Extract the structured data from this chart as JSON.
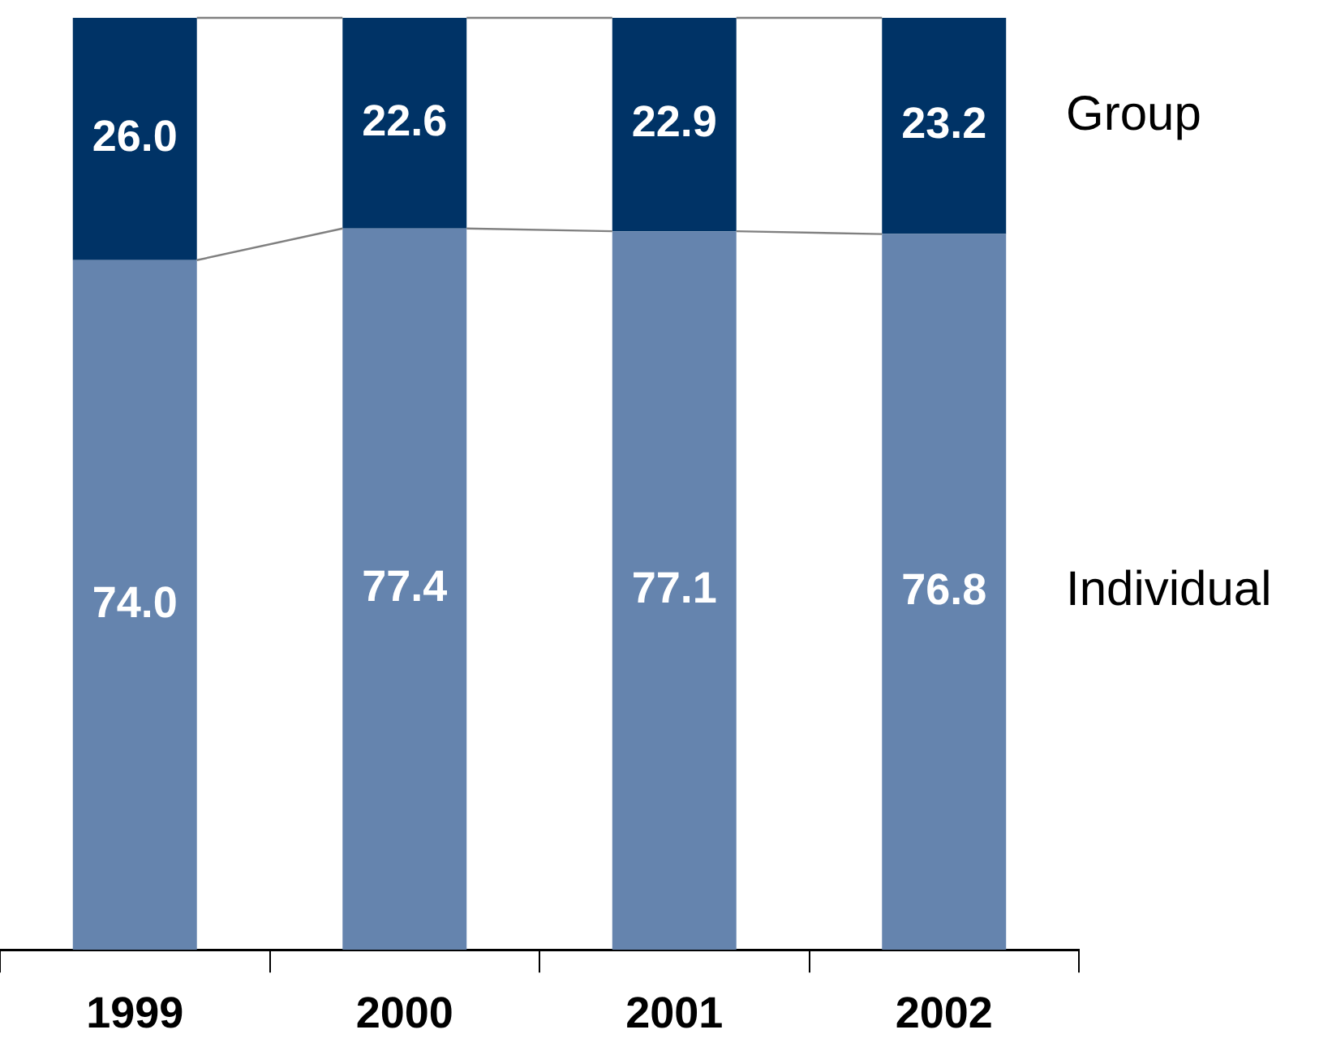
{
  "chart_data": {
    "type": "bar",
    "stacked": true,
    "categories": [
      "1999",
      "2000",
      "2001",
      "2002"
    ],
    "series": [
      {
        "name": "Individual",
        "color": "#6584ae",
        "values": [
          74.0,
          77.4,
          77.1,
          76.8
        ],
        "value_labels": [
          "74.0",
          "77.4",
          "77.1",
          "76.8"
        ]
      },
      {
        "name": "Group",
        "color": "#003366",
        "values": [
          26.0,
          22.6,
          22.9,
          23.2
        ],
        "value_labels": [
          "26.0",
          "22.6",
          "22.9",
          "23.2"
        ]
      }
    ]
  }
}
